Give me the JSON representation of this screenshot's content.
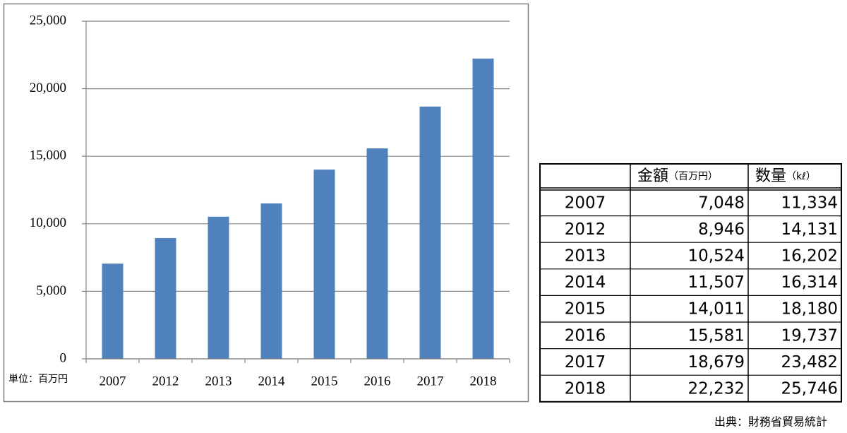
{
  "chart_data": {
    "type": "bar",
    "unit_label": "単位：百万円",
    "categories": [
      "2007",
      "2012",
      "2013",
      "2014",
      "2015",
      "2016",
      "2017",
      "2018"
    ],
    "values": [
      7048,
      8946,
      10524,
      11507,
      14011,
      15581,
      18679,
      22232
    ],
    "color": "#4f81bd",
    "ylim": [
      0,
      25000
    ],
    "yticks": [
      0,
      {
        "value": 5000,
        "label": "5,000"
      },
      {
        "value": 10000,
        "label": "10,000"
      },
      {
        "value": 15000,
        "label": "15,000"
      },
      {
        "value": 20000,
        "label": "20,000"
      },
      {
        "value": 25000,
        "label": "25,000"
      }
    ],
    "grid": true
  },
  "table": {
    "header": [
      {
        "main": "金額",
        "unit": "（百万円）"
      },
      {
        "main": "数量",
        "unit": "（kℓ）"
      }
    ],
    "rows": [
      [
        "2007",
        "7,048",
        "11,334"
      ],
      [
        "2012",
        "8,946",
        "14,131"
      ],
      [
        "2013",
        "10,524",
        "16,202"
      ],
      [
        "2014",
        "11,507",
        "16,314"
      ],
      [
        "2015",
        "14,011",
        "18,180"
      ],
      [
        "2016",
        "15,581",
        "19,737"
      ],
      [
        "2017",
        "18,679",
        "23,482"
      ],
      [
        "2018",
        "22,232",
        "25,746"
      ]
    ]
  },
  "source": "出典：財務省貿易統計"
}
